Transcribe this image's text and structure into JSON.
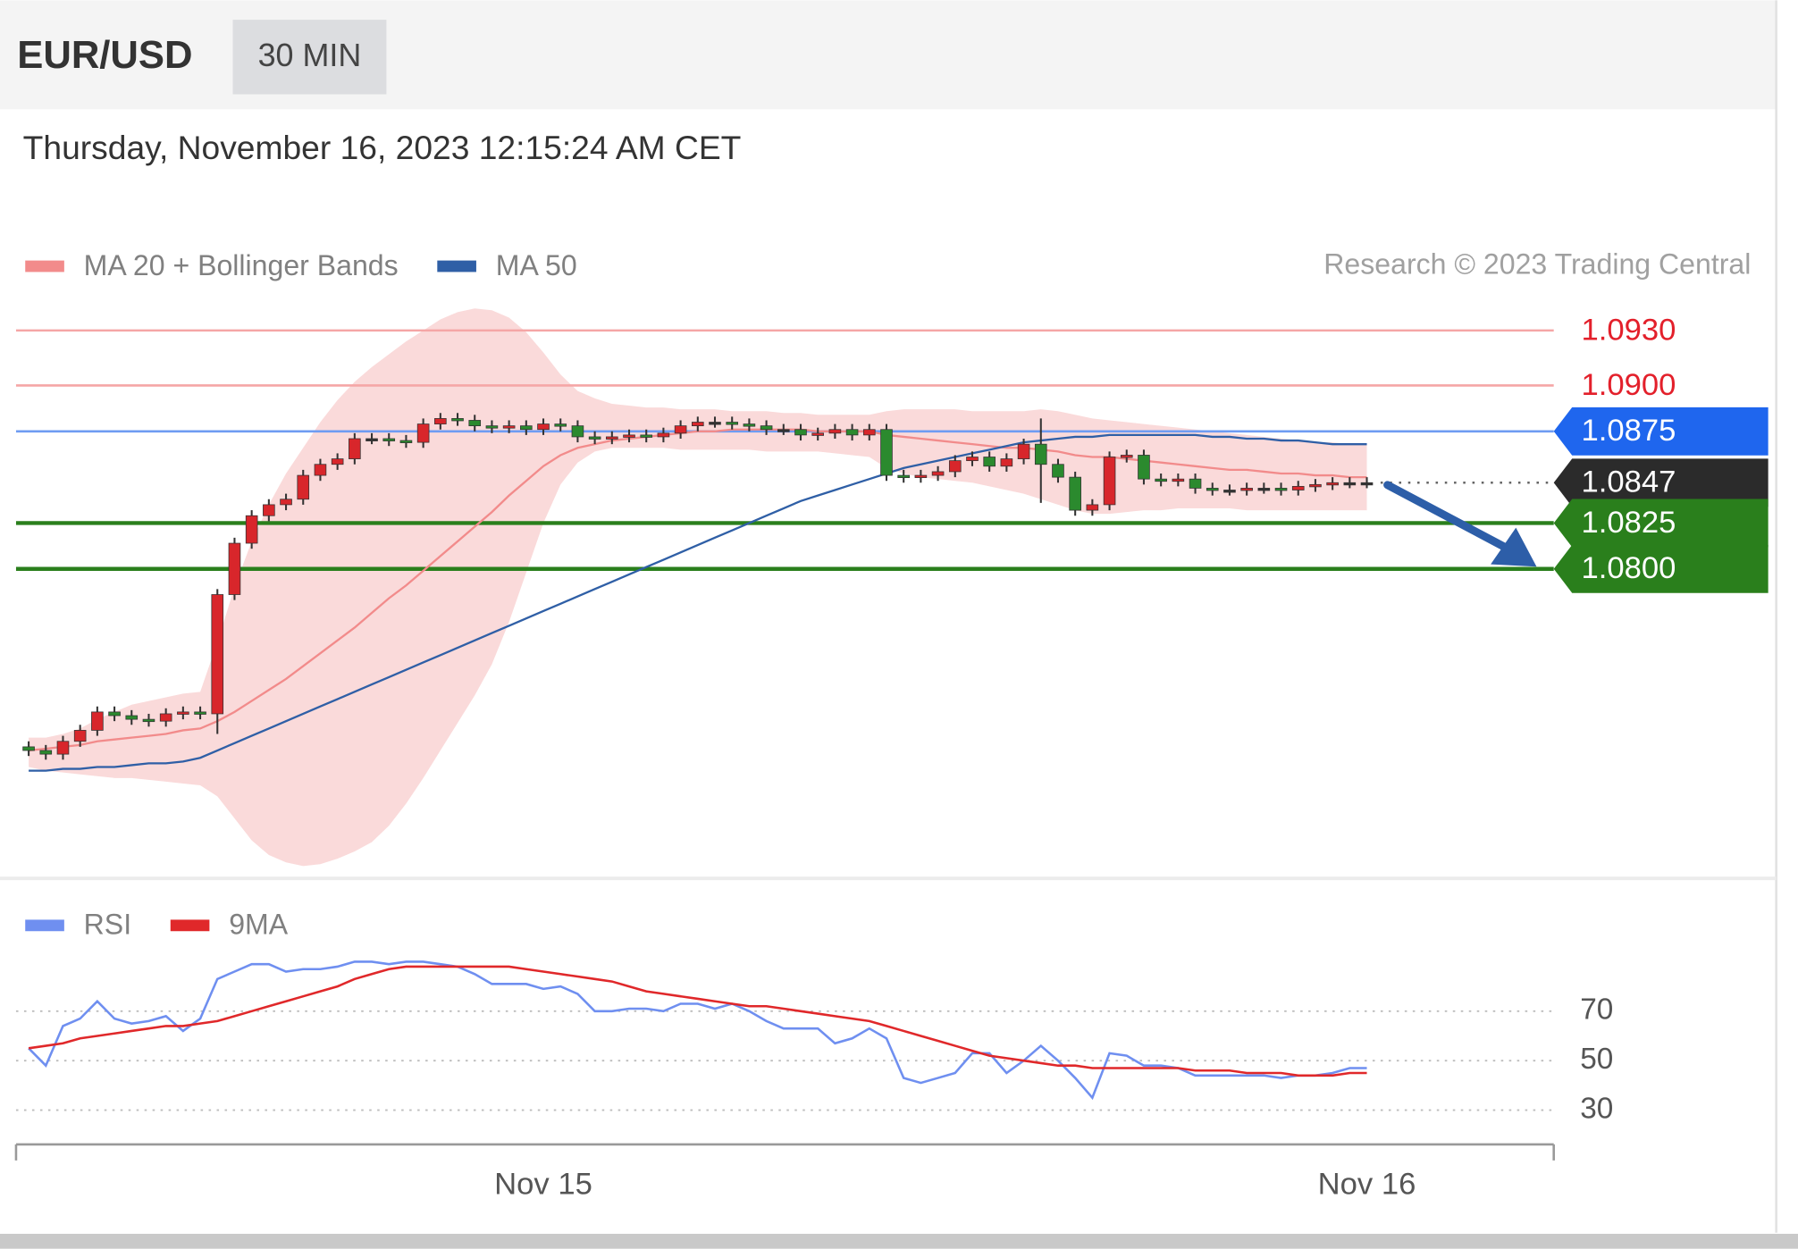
{
  "header": {
    "symbol": "EUR/USD",
    "interval": "30 MIN",
    "timestamp": "Thursday, November 16, 2023 12:15:24 AM CET",
    "copyright": "Research © 2023 Trading Central"
  },
  "chart_data": [
    {
      "type": "candlestick",
      "categories": [
        null,
        null,
        null,
        null,
        null,
        null,
        null,
        null,
        null,
        null,
        null,
        null,
        null,
        null,
        null,
        null,
        null,
        null,
        null,
        null,
        null,
        null,
        null,
        null,
        null,
        null,
        null,
        null,
        null,
        null,
        "Nov 15",
        null,
        null,
        null,
        null,
        null,
        null,
        null,
        null,
        null,
        null,
        null,
        null,
        null,
        null,
        null,
        null,
        null,
        null,
        null,
        null,
        null,
        null,
        null,
        null,
        null,
        null,
        null,
        null,
        null,
        null,
        null,
        null,
        null,
        null,
        null,
        null,
        null,
        null,
        null,
        null,
        null,
        null,
        null,
        null,
        null,
        null,
        null,
        "Nov 16"
      ],
      "open": [
        1.0703,
        1.0701,
        1.0699,
        1.0706,
        1.0712,
        1.0722,
        1.072,
        1.0718,
        1.0717,
        1.0721,
        1.0722,
        1.0721,
        1.0786,
        1.0814,
        1.0829,
        1.0835,
        1.0838,
        1.0851,
        1.0857,
        1.086,
        1.0871,
        1.0871,
        1.087,
        1.0869,
        1.0879,
        1.0882,
        1.0881,
        1.0878,
        1.0877,
        1.0878,
        1.0876,
        1.0879,
        1.0878,
        1.0872,
        1.0871,
        1.0872,
        1.0873,
        1.0872,
        1.0874,
        1.0878,
        1.088,
        1.088,
        1.0879,
        1.0878,
        1.0876,
        1.0876,
        1.0873,
        1.0874,
        1.0876,
        1.0873,
        1.0876,
        1.0851,
        1.085,
        1.0851,
        1.0853,
        1.0859,
        1.0861,
        1.0856,
        1.086,
        1.0868,
        1.0857,
        1.085,
        1.0832,
        1.0835,
        1.0861,
        1.0862,
        1.0849,
        1.0848,
        1.0849,
        1.0844,
        1.0843,
        1.0843,
        1.0844,
        1.0844,
        1.0843,
        1.0845,
        1.0846,
        1.0847,
        1.0847
      ],
      "high": [
        1.0706,
        1.0704,
        1.0709,
        1.0715,
        1.0725,
        1.0725,
        1.0723,
        1.0721,
        1.0724,
        1.0725,
        1.0725,
        1.0789,
        1.0817,
        1.0832,
        1.0838,
        1.0841,
        1.0854,
        1.086,
        1.0863,
        1.0874,
        1.0874,
        1.0874,
        1.0873,
        1.0882,
        1.0885,
        1.0885,
        1.0884,
        1.0881,
        1.0881,
        1.0881,
        1.0882,
        1.0882,
        1.0881,
        1.0875,
        1.0875,
        1.0876,
        1.0876,
        1.0877,
        1.0881,
        1.0883,
        1.0883,
        1.0883,
        1.0882,
        1.0881,
        1.0879,
        1.0879,
        1.0877,
        1.0879,
        1.0879,
        1.0879,
        1.0879,
        1.0854,
        1.0854,
        1.0856,
        1.0862,
        1.0864,
        1.0864,
        1.0863,
        1.0871,
        1.0882,
        1.086,
        1.0853,
        1.0838,
        1.0864,
        1.0865,
        1.0865,
        1.0852,
        1.0852,
        1.0852,
        1.0847,
        1.0846,
        1.0847,
        1.0847,
        1.0847,
        1.0848,
        1.0849,
        1.085,
        1.085,
        1.085
      ],
      "low": [
        1.0698,
        1.0696,
        1.0696,
        1.0703,
        1.0709,
        1.0717,
        1.0715,
        1.0714,
        1.0714,
        1.0718,
        1.0718,
        1.071,
        1.0783,
        1.0811,
        1.0826,
        1.0832,
        1.0835,
        1.0848,
        1.0854,
        1.0857,
        1.0868,
        1.0867,
        1.0866,
        1.0866,
        1.0876,
        1.0878,
        1.0875,
        1.0874,
        1.0874,
        1.0873,
        1.0873,
        1.0875,
        1.0869,
        1.0868,
        1.0868,
        1.0869,
        1.0869,
        1.0869,
        1.0871,
        1.0875,
        1.0877,
        1.0876,
        1.0875,
        1.0873,
        1.0873,
        1.087,
        1.087,
        1.0871,
        1.087,
        1.087,
        1.0848,
        1.0847,
        1.0847,
        1.0848,
        1.085,
        1.0856,
        1.0853,
        1.0853,
        1.0857,
        1.0836,
        1.0847,
        1.0829,
        1.0829,
        1.0832,
        1.0858,
        1.0846,
        1.0845,
        1.0845,
        1.0841,
        1.084,
        1.084,
        1.084,
        1.0841,
        1.084,
        1.084,
        1.0842,
        1.0843,
        1.0844,
        1.0844
      ],
      "close": [
        1.0701,
        1.0699,
        1.0706,
        1.0712,
        1.0722,
        1.072,
        1.0718,
        1.0717,
        1.0721,
        1.0722,
        1.0721,
        1.0786,
        1.0814,
        1.0829,
        1.0835,
        1.0838,
        1.0851,
        1.0857,
        1.086,
        1.0871,
        1.0871,
        1.087,
        1.0869,
        1.0879,
        1.0882,
        1.0881,
        1.0878,
        1.0877,
        1.0878,
        1.0876,
        1.0879,
        1.0878,
        1.0872,
        1.0871,
        1.0872,
        1.0873,
        1.0872,
        1.0874,
        1.0878,
        1.088,
        1.088,
        1.0879,
        1.0878,
        1.0876,
        1.0876,
        1.0873,
        1.0874,
        1.0876,
        1.0873,
        1.0876,
        1.0851,
        1.085,
        1.0851,
        1.0853,
        1.0859,
        1.0861,
        1.0856,
        1.086,
        1.0868,
        1.0857,
        1.085,
        1.0832,
        1.0835,
        1.0861,
        1.0862,
        1.0849,
        1.0848,
        1.0849,
        1.0844,
        1.0843,
        1.0843,
        1.0844,
        1.0844,
        1.0843,
        1.0845,
        1.0846,
        1.0847,
        1.0847,
        1.0847
      ],
      "up_color": "#d8262b",
      "down_color": "#2b8a2e",
      "wick_color": "#333333",
      "series": [
        {
          "name": "MA 20 + Bollinger Bands",
          "color": "#f28b8b",
          "band_color": "#f9d3d4",
          "values": [
            1.0701,
            1.0702,
            1.0703,
            1.0704,
            1.0706,
            1.0707,
            1.0708,
            1.0709,
            1.071,
            1.0712,
            1.0713,
            1.0717,
            1.0722,
            1.0728,
            1.0734,
            1.074,
            1.0747,
            1.0754,
            1.0761,
            1.0768,
            1.0776,
            1.0784,
            1.0791,
            1.0799,
            1.0807,
            1.0815,
            1.0823,
            1.0831,
            1.084,
            1.0848,
            1.0856,
            1.0862,
            1.0866,
            1.0868,
            1.087,
            1.0871,
            1.0872,
            1.0873,
            1.0874,
            1.0875,
            1.0875,
            1.0876,
            1.0876,
            1.0876,
            1.0876,
            1.0876,
            1.0875,
            1.0875,
            1.0875,
            1.0875,
            1.0873,
            1.0872,
            1.0871,
            1.087,
            1.0869,
            1.0868,
            1.0867,
            1.0866,
            1.0866,
            1.0865,
            1.0864,
            1.0862,
            1.0861,
            1.0861,
            1.086,
            1.0859,
            1.0858,
            1.0857,
            1.0856,
            1.0855,
            1.0854,
            1.0854,
            1.0853,
            1.0852,
            1.0852,
            1.0851,
            1.0851,
            1.085,
            1.085
          ],
          "upper": [
            1.0708,
            1.0708,
            1.071,
            1.0713,
            1.0718,
            1.0722,
            1.0726,
            1.0728,
            1.073,
            1.0732,
            1.0733,
            1.076,
            1.079,
            1.0815,
            1.0835,
            1.0852,
            1.0866,
            1.088,
            1.0892,
            1.0902,
            1.091,
            1.0917,
            1.0924,
            1.093,
            1.0936,
            1.094,
            1.0942,
            1.0941,
            1.0937,
            1.0929,
            1.0918,
            1.0906,
            1.0897,
            1.0893,
            1.089,
            1.0889,
            1.0888,
            1.0888,
            1.0887,
            1.0887,
            1.0887,
            1.0886,
            1.0886,
            1.0886,
            1.0885,
            1.0885,
            1.0884,
            1.0884,
            1.0884,
            1.0884,
            1.0886,
            1.0887,
            1.0887,
            1.0887,
            1.0887,
            1.0886,
            1.0886,
            1.0886,
            1.0886,
            1.0887,
            1.0886,
            1.0884,
            1.0882,
            1.0881,
            1.088,
            1.0879,
            1.0878,
            1.0877,
            1.0876,
            1.0875,
            1.0874,
            1.0873,
            1.0872,
            1.0871,
            1.087,
            1.0869,
            1.0869,
            1.0868,
            1.0868
          ],
          "lower": [
            1.0692,
            1.069,
            1.0689,
            1.0688,
            1.0687,
            1.0686,
            1.0686,
            1.0685,
            1.0684,
            1.0683,
            1.0682,
            1.0676,
            1.0664,
            1.0652,
            1.0644,
            1.064,
            1.0638,
            1.0639,
            1.0642,
            1.0646,
            1.0651,
            1.066,
            1.0672,
            1.0686,
            1.0701,
            1.0716,
            1.0731,
            1.0748,
            1.0771,
            1.0798,
            1.0825,
            1.0846,
            1.0858,
            1.0864,
            1.0866,
            1.0866,
            1.0866,
            1.0866,
            1.0865,
            1.0865,
            1.0865,
            1.0865,
            1.0865,
            1.0864,
            1.0864,
            1.0864,
            1.0864,
            1.0863,
            1.0862,
            1.0861,
            1.0855,
            1.0852,
            1.085,
            1.0849,
            1.0848,
            1.0847,
            1.0845,
            1.0843,
            1.0841,
            1.0838,
            1.0835,
            1.0832,
            1.083,
            1.083,
            1.0831,
            1.0832,
            1.0832,
            1.0833,
            1.0833,
            1.0833,
            1.0833,
            1.0832,
            1.0832,
            1.0832,
            1.0832,
            1.0832,
            1.0832,
            1.0832,
            1.0832
          ]
        },
        {
          "name": "MA 50",
          "color": "#2f5fa6",
          "values": [
            1.069,
            1.069,
            1.0691,
            1.0691,
            1.0692,
            1.0692,
            1.0693,
            1.0694,
            1.0694,
            1.0695,
            1.0697,
            1.0701,
            1.0705,
            1.0709,
            1.0713,
            1.0717,
            1.0721,
            1.0725,
            1.0729,
            1.0733,
            1.0737,
            1.0741,
            1.0745,
            1.0749,
            1.0753,
            1.0757,
            1.0761,
            1.0765,
            1.0769,
            1.0773,
            1.0777,
            1.0781,
            1.0785,
            1.0789,
            1.0793,
            1.0797,
            1.0801,
            1.0805,
            1.0809,
            1.0813,
            1.0817,
            1.0821,
            1.0825,
            1.0829,
            1.0833,
            1.0837,
            1.084,
            1.0843,
            1.0846,
            1.0849,
            1.0852,
            1.0855,
            1.0857,
            1.0859,
            1.0861,
            1.0863,
            1.0865,
            1.0867,
            1.0869,
            1.087,
            1.0871,
            1.0872,
            1.0872,
            1.0873,
            1.0873,
            1.0873,
            1.0873,
            1.0873,
            1.0873,
            1.0872,
            1.0872,
            1.0871,
            1.0871,
            1.087,
            1.087,
            1.0869,
            1.0868,
            1.0868,
            1.0868
          ]
        }
      ],
      "levels": [
        {
          "value": 1.093,
          "label": "1.0930",
          "color": "#f5a6a6",
          "text_color": "#e3202b",
          "line_width": 2
        },
        {
          "value": 1.09,
          "label": "1.0900",
          "color": "#f5a6a6",
          "text_color": "#e3202b",
          "line_width": 2
        },
        {
          "value": 1.0875,
          "color": "#6f9cf2",
          "tag_color": "#1f66ee",
          "line_width": 2
        },
        {
          "value": 1.0847,
          "color": "#666666",
          "tag_color": "#2b2b2b",
          "line_width": 2,
          "dotted": true
        },
        {
          "value": 1.0825,
          "color": "#2a7f1c",
          "tag_color": "#2a7f1c",
          "line_width": 3.5
        },
        {
          "value": 1.08,
          "label": "1.0800",
          "color": "#2a7f1c",
          "tag_color": "#2a7f1c",
          "line_width": 3.5
        }
      ],
      "arrow_color": "#2d5ea8",
      "ylim": [
        1.0635,
        1.0945
      ]
    },
    {
      "type": "line",
      "series": [
        {
          "name": "RSI",
          "color": "#6f8ff0",
          "values": [
            55,
            48,
            64,
            67,
            74,
            67,
            65,
            66,
            68,
            62,
            67,
            83,
            86,
            89,
            89,
            86,
            87,
            87,
            88,
            90,
            90,
            89,
            90,
            90,
            89,
            88,
            85,
            81,
            81,
            81,
            79,
            80,
            77,
            70,
            70,
            71,
            71,
            70,
            73,
            73,
            71,
            73,
            70,
            66,
            63,
            63,
            63,
            57,
            59,
            63,
            59,
            43,
            41,
            43,
            45,
            53,
            53,
            45,
            50,
            56,
            50,
            43,
            35,
            53,
            52,
            48,
            48,
            47,
            44,
            44,
            44,
            44,
            44,
            43,
            44,
            44,
            45,
            47,
            47
          ]
        },
        {
          "name": "9MA",
          "color": "#e0282a",
          "values": [
            55,
            56,
            57,
            59,
            60,
            61,
            62,
            63,
            64,
            64,
            65,
            66,
            68,
            70,
            72,
            74,
            76,
            78,
            80,
            83,
            85,
            87,
            88,
            88,
            88,
            88,
            88,
            88,
            88,
            87,
            86,
            85,
            84,
            83,
            82,
            80,
            78,
            77,
            76,
            75,
            74,
            73,
            72,
            72,
            71,
            70,
            69,
            68,
            67,
            66,
            64,
            62,
            60,
            58,
            56,
            54,
            52,
            51,
            50,
            49,
            48,
            48,
            47,
            47,
            47,
            47,
            47,
            47,
            46,
            46,
            46,
            45,
            45,
            45,
            44,
            44,
            44,
            45,
            45
          ]
        }
      ],
      "ylim": [
        18,
        94
      ],
      "yticks": [
        30,
        50,
        70
      ],
      "grid": true
    }
  ]
}
